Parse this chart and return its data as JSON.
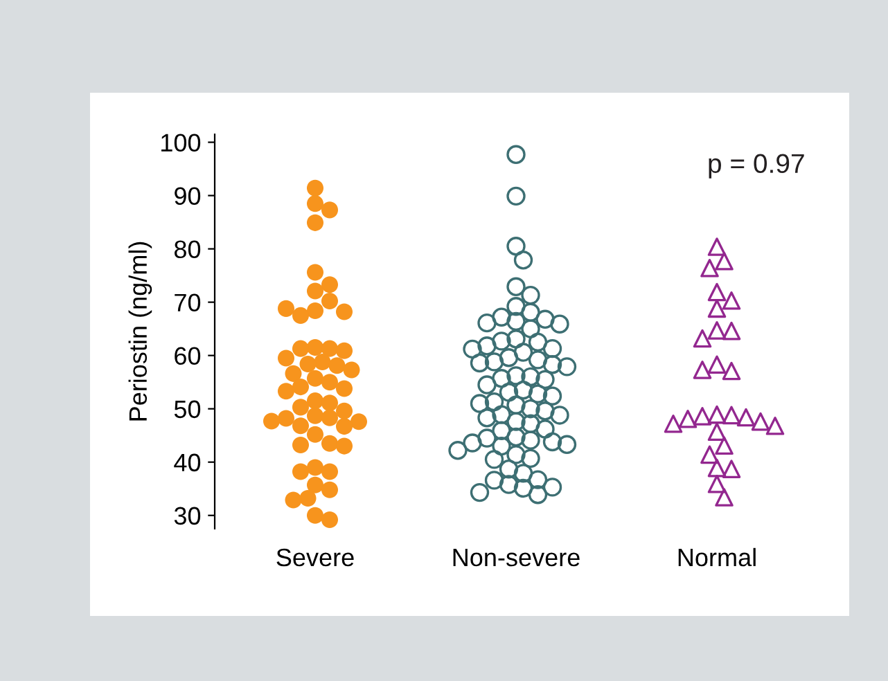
{
  "chart_data": {
    "type": "scatter",
    "ylabel": "Periostin (ng/ml)",
    "categories": [
      "Severe",
      "Non-severe",
      "Normal"
    ],
    "ylim": [
      27.5,
      101.5
    ],
    "yticks": [
      30,
      40,
      50,
      60,
      70,
      80,
      90,
      100
    ],
    "grid": false,
    "legend": false,
    "annotations": [
      "p = 0.97"
    ],
    "series": [
      {
        "color": "#f7941d",
        "marker": "circle",
        "x": [
          "Severe",
          "Severe",
          "Severe",
          "Severe",
          "Severe",
          "Severe",
          "Severe",
          "Severe",
          "Severe",
          "Severe",
          "Severe",
          "Severe",
          "Severe",
          "Severe",
          "Severe",
          "Severe",
          "Severe",
          "Severe",
          "Severe",
          "Severe",
          "Severe",
          "Severe",
          "Severe",
          "Severe",
          "Severe",
          "Severe",
          "Severe",
          "Severe",
          "Severe",
          "Severe",
          "Severe",
          "Severe",
          "Severe",
          "Severe",
          "Severe",
          "Severe",
          "Severe",
          "Severe",
          "Severe",
          "Severe",
          "Severe",
          "Severe",
          "Severe",
          "Severe",
          "Severe",
          "Severe",
          "Severe",
          "Severe",
          "Severe",
          "Severe",
          "Severe"
        ],
        "values": [
          91.4,
          88.5,
          87.3,
          84.9,
          75.6,
          73.3,
          72.1,
          70.2,
          68.4,
          67.5,
          68.2,
          68.8,
          61.5,
          61.3,
          61.3,
          60.9,
          59.5,
          58.8,
          58.4,
          58.1,
          57.3,
          56.6,
          55.7,
          55.0,
          54.1,
          53.8,
          53.3,
          51.5,
          51.1,
          50.3,
          49.6,
          48.7,
          48.3,
          48.2,
          47.6,
          47.7,
          46.8,
          46.7,
          45.2,
          43.5,
          43.2,
          43.0,
          39.0,
          38.2,
          38.2,
          35.7,
          34.8,
          33.2,
          32.9,
          30.0,
          29.2
        ]
      },
      {
        "color": "#3d6f73",
        "marker": "circle",
        "x": [
          "Non-severe",
          "Non-severe",
          "Non-severe",
          "Non-severe",
          "Non-severe",
          "Non-severe",
          "Non-severe",
          "Non-severe",
          "Non-severe",
          "Non-severe",
          "Non-severe",
          "Non-severe",
          "Non-severe",
          "Non-severe",
          "Non-severe",
          "Non-severe",
          "Non-severe",
          "Non-severe",
          "Non-severe",
          "Non-severe",
          "Non-severe",
          "Non-severe",
          "Non-severe",
          "Non-severe",
          "Non-severe",
          "Non-severe",
          "Non-severe",
          "Non-severe",
          "Non-severe",
          "Non-severe",
          "Non-severe",
          "Non-severe",
          "Non-severe",
          "Non-severe",
          "Non-severe",
          "Non-severe",
          "Non-severe",
          "Non-severe",
          "Non-severe",
          "Non-severe",
          "Non-severe",
          "Non-severe",
          "Non-severe",
          "Non-severe",
          "Non-severe",
          "Non-severe",
          "Non-severe",
          "Non-severe",
          "Non-severe",
          "Non-severe",
          "Non-severe",
          "Non-severe",
          "Non-severe",
          "Non-severe",
          "Non-severe",
          "Non-severe",
          "Non-severe",
          "Non-severe",
          "Non-severe",
          "Non-severe",
          "Non-severe",
          "Non-severe",
          "Non-severe",
          "Non-severe",
          "Non-severe",
          "Non-severe",
          "Non-severe",
          "Non-severe"
        ],
        "values": [
          97.7,
          89.9,
          80.5,
          77.9,
          72.9,
          71.3,
          69.2,
          68.1,
          67.2,
          66.8,
          66.4,
          66.1,
          65.9,
          65.0,
          63.1,
          62.7,
          62.5,
          61.8,
          61.3,
          61.2,
          60.6,
          59.6,
          59.2,
          58.8,
          58.6,
          58.3,
          57.9,
          56.2,
          56.0,
          55.7,
          55.5,
          54.5,
          53.5,
          53.1,
          52.8,
          52.4,
          51.3,
          51.0,
          50.7,
          50.0,
          49.6,
          48.9,
          48.8,
          48.3,
          47.6,
          47.2,
          46.2,
          45.9,
          44.7,
          44.5,
          44.1,
          43.8,
          43.6,
          43.3,
          43.0,
          42.2,
          41.4,
          40.7,
          40.5,
          38.7,
          37.9,
          36.7,
          36.6,
          35.8,
          35.3,
          35.1,
          34.3,
          33.9
        ]
      },
      {
        "color": "#93278f",
        "marker": "triangle",
        "x": [
          "Normal",
          "Normal",
          "Normal",
          "Normal",
          "Normal",
          "Normal",
          "Normal",
          "Normal",
          "Normal",
          "Normal",
          "Normal",
          "Normal",
          "Normal",
          "Normal",
          "Normal",
          "Normal",
          "Normal",
          "Normal",
          "Normal",
          "Normal",
          "Normal",
          "Normal",
          "Normal",
          "Normal",
          "Normal",
          "Normal",
          "Normal"
        ],
        "values": [
          80.4,
          77.7,
          76.4,
          71.9,
          70.3,
          68.8,
          64.7,
          64.6,
          63.2,
          58.3,
          57.1,
          57.3,
          48.9,
          48.8,
          48.6,
          48.4,
          48.1,
          47.6,
          47.2,
          46.8,
          45.7,
          43.1,
          41.4,
          38.9,
          38.7,
          35.9,
          33.4
        ]
      }
    ]
  }
}
